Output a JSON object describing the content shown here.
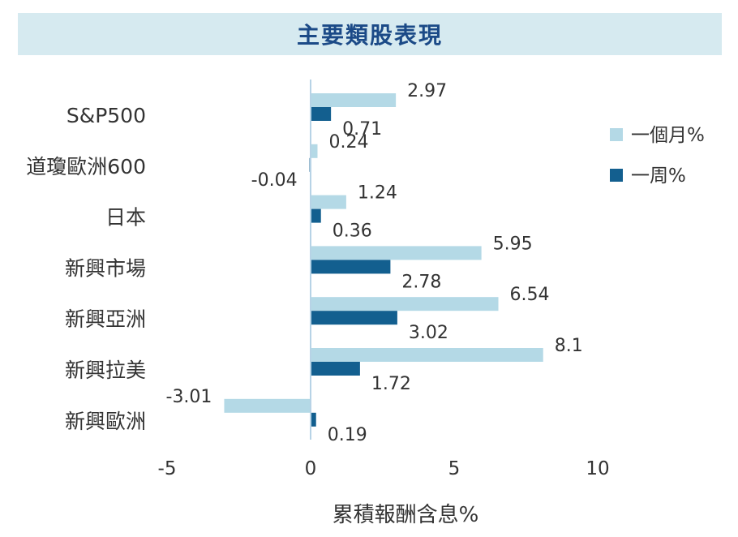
{
  "chart_data": {
    "type": "bar",
    "orientation": "horizontal",
    "title": "主要類股表現",
    "xlabel": "累積報酬含息%",
    "ylabel": "",
    "xlim": [
      -5,
      15
    ],
    "xticks": [
      -5,
      0,
      5,
      10
    ],
    "grid": false,
    "legend_position": "right",
    "categories": [
      "S&P500",
      "道瓊歐洲600",
      "日本",
      "新興市場",
      "新興亞洲",
      "新興拉美",
      "新興歐洲"
    ],
    "series": [
      {
        "name": "一個月%",
        "color": "#b4d9e6",
        "values": [
          2.97,
          0.24,
          1.24,
          5.95,
          6.54,
          8.1,
          -3.01
        ],
        "labels": [
          "2.97",
          "0.24",
          "1.24",
          "5.95",
          "6.54",
          "8.1",
          "-3.01"
        ]
      },
      {
        "name": "一周%",
        "color": "#135f8f",
        "values": [
          0.71,
          -0.04,
          0.36,
          2.78,
          3.02,
          1.72,
          0.19
        ],
        "labels": [
          "0.71",
          "-0.04",
          "0.36",
          "2.78",
          "3.02",
          "1.72",
          "0.19"
        ]
      }
    ]
  }
}
